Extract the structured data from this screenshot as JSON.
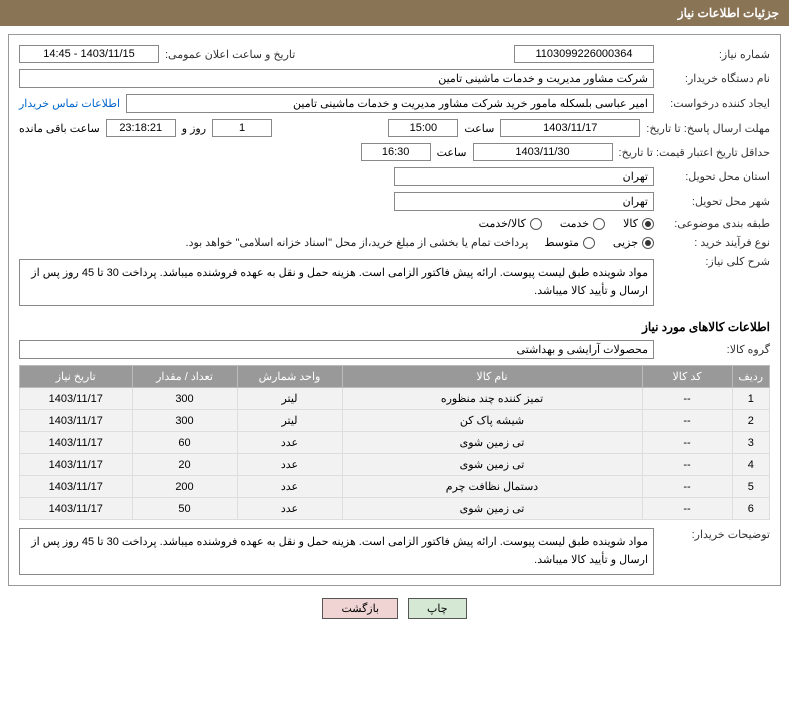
{
  "header": {
    "title": "جزئیات اطلاعات نیاز"
  },
  "form": {
    "need_no_label": "شماره نیاز:",
    "need_no": "1103099226000364",
    "announce_label": "تاریخ و ساعت اعلان عمومی:",
    "announce_value": "1403/11/15 - 14:45",
    "buyer_org_label": "نام دستگاه خریدار:",
    "buyer_org": "شرکت مشاور مدیریت و خدمات ماشینی تامین",
    "requester_label": "ایجاد کننده درخواست:",
    "requester": "امیر عباسی بلسکله مامور خرید شرکت مشاور مدیریت و خدمات ماشینی تامین",
    "contact_link": "اطلاعات تماس خریدار",
    "deadline_label": "مهلت ارسال پاسخ: تا تاریخ:",
    "deadline_date": "1403/11/17",
    "time_label": "ساعت",
    "deadline_time": "15:00",
    "days_remaining": "1",
    "days_and": "روز و",
    "countdown": "23:18:21",
    "hours_remaining_label": "ساعت باقی مانده",
    "validity_label": "حداقل تاریخ اعتبار قیمت: تا تاریخ:",
    "validity_date": "1403/11/30",
    "validity_time": "16:30",
    "province_label": "استان محل تحویل:",
    "province": "تهران",
    "city_label": "شهر محل تحویل:",
    "city": "تهران",
    "category_label": "طبقه بندی موضوعی:",
    "cat_goods": "کالا",
    "cat_service": "خدمت",
    "cat_both": "کالا/خدمت",
    "process_label": "نوع فرآیند خرید :",
    "proc_partial": "جزیی",
    "proc_medium": "متوسط",
    "process_note": "پرداخت تمام یا بخشی از مبلغ خرید،از محل \"اسناد خزانه اسلامی\" خواهد بود.",
    "desc_label": "شرح کلی نیاز:",
    "desc_text": "مواد شوینده طبق لیست پیوست. ارائه پیش فاکتور الزامی است. هزینه حمل و نقل به عهده فروشنده میباشد. پرداخت 30 تا 45 روز پس از ارسال و تأیید کالا میباشد.",
    "items_section": "اطلاعات کالاهای مورد نیاز",
    "group_label": "گروه کالا:",
    "group_value": "محصولات آرایشی و بهداشتی",
    "buyer_notes_label": "توضیحات خریدار:",
    "buyer_notes": "مواد شوینده طبق لیست پیوست. ارائه پیش فاکتور الزامی است. هزینه حمل و نقل به عهده فروشنده میباشد. پرداخت 30 تا 45 روز پس از ارسال و تأیید کالا میباشد."
  },
  "table": {
    "columns": [
      "ردیف",
      "کد کالا",
      "نام کالا",
      "واحد شمارش",
      "تعداد / مقدار",
      "تاریخ نیاز"
    ],
    "rows": [
      [
        "1",
        "--",
        "تمیز کننده چند منظوره",
        "لیتر",
        "300",
        "1403/11/17"
      ],
      [
        "2",
        "--",
        "شیشه پاک کن",
        "لیتر",
        "300",
        "1403/11/17"
      ],
      [
        "3",
        "--",
        "تی زمین شوی",
        "عدد",
        "60",
        "1403/11/17"
      ],
      [
        "4",
        "--",
        "تی زمین شوی",
        "عدد",
        "20",
        "1403/11/17"
      ],
      [
        "5",
        "--",
        "دستمال نظافت چرم",
        "عدد",
        "200",
        "1403/11/17"
      ],
      [
        "6",
        "--",
        "تی زمین شوی",
        "عدد",
        "50",
        "1403/11/17"
      ]
    ]
  },
  "buttons": {
    "print": "چاپ",
    "back": "بازگشت"
  },
  "styling": {
    "header_bg": "#8a7456",
    "header_color": "#ffffff",
    "th_bg": "#999999",
    "td_bg": "#f2f2f2",
    "border_color": "#888888",
    "link_color": "#0066cc",
    "btn_print_bg": "#d4e8d4",
    "btn_back_bg": "#f0d4d4",
    "font_size_base": 11,
    "col_widths_pct": [
      5,
      12,
      40,
      14,
      14,
      15
    ]
  }
}
